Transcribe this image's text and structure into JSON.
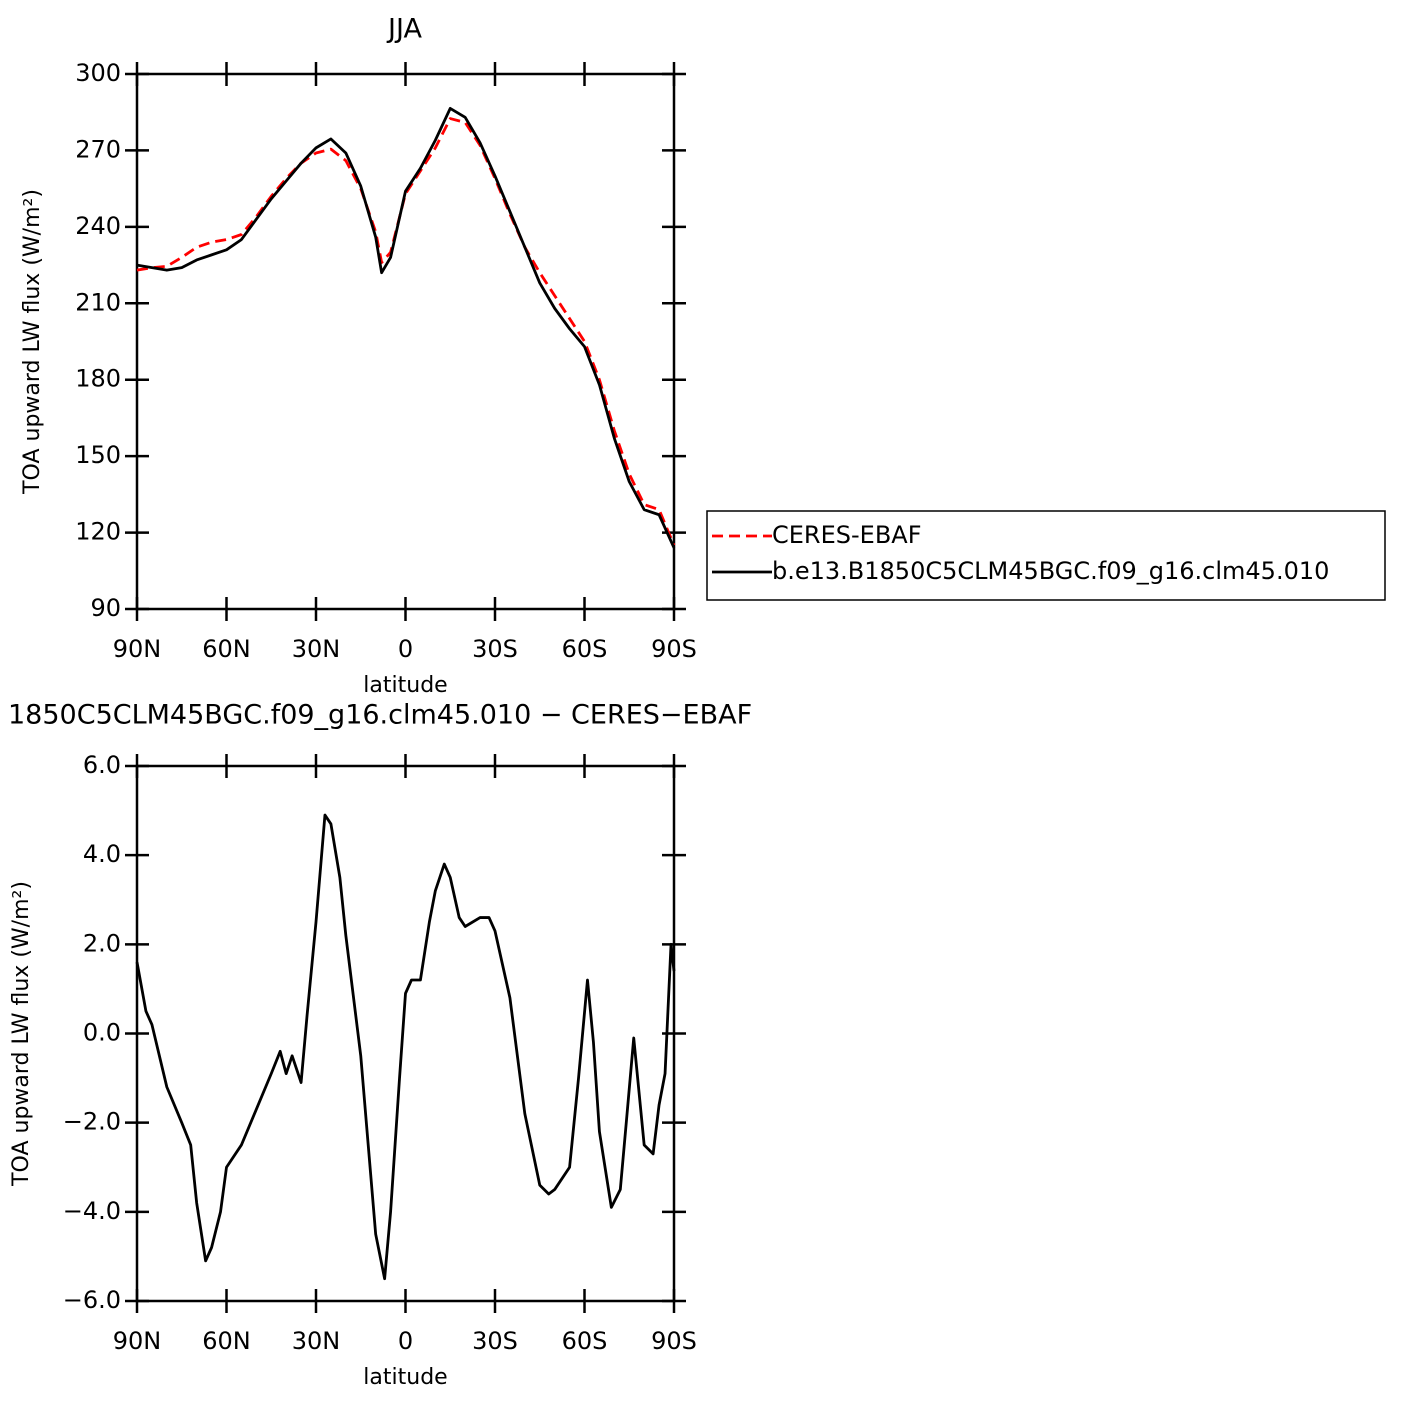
{
  "chart_data": [
    {
      "type": "line",
      "title": "JJA",
      "xlabel": "latitude",
      "ylabel": "TOA upward LW flux (W/m²)",
      "x": [
        90,
        85,
        80,
        75,
        70,
        65,
        60,
        55,
        50,
        45,
        40,
        35,
        30,
        25,
        20,
        15,
        10,
        8,
        5,
        0,
        -5,
        -10,
        -15,
        -20,
        -25,
        -30,
        -35,
        -40,
        -45,
        -50,
        -55,
        -60,
        -65,
        -70,
        -75,
        -80,
        -85,
        -90
      ],
      "xlim": [
        90,
        -90
      ],
      "xticks": [
        {
          "value": 90,
          "label": "90N"
        },
        {
          "value": 60,
          "label": "60N"
        },
        {
          "value": 30,
          "label": "30N"
        },
        0,
        {
          "value": -30,
          "label": "30S"
        },
        {
          "value": -60,
          "label": "60S"
        },
        {
          "value": -90,
          "label": "90S"
        }
      ],
      "ylim": [
        90,
        300
      ],
      "yticks": [
        90,
        120,
        150,
        180,
        210,
        240,
        270,
        300
      ],
      "legend": "outside-right",
      "series": [
        {
          "name": "CERES-EBAF",
          "color": "#ff0000",
          "dash": "dashed",
          "values": [
            223,
            224,
            224.5,
            228,
            232,
            234,
            235,
            237,
            244,
            252,
            259,
            265,
            269,
            270.5,
            266,
            255,
            238,
            226,
            230,
            253,
            262,
            271,
            282.5,
            281,
            272,
            259,
            245,
            232,
            222,
            213,
            204,
            195,
            180,
            160,
            143,
            131,
            129,
            115
          ]
        },
        {
          "name": "b.e13.B1850C5CLM45BGC.f09_g16.clm45.010",
          "color": "#000000",
          "dash": "solid",
          "values": [
            225,
            224,
            223,
            224,
            227,
            229,
            231,
            235,
            243,
            251,
            258,
            265,
            271,
            274.5,
            269,
            256,
            236,
            222,
            228,
            254,
            263,
            274,
            286.5,
            283,
            273,
            260,
            246,
            232,
            218,
            208,
            200,
            193,
            178,
            157,
            140,
            129,
            127,
            114
          ]
        }
      ]
    },
    {
      "type": "line",
      "title": "1850C5CLM45BGC.f09_g16.clm45.010 − CERES−EBAF",
      "xlabel": "latitude",
      "ylabel": "TOA upward LW flux (W/m²)",
      "x": [
        90,
        87,
        85,
        80,
        75,
        72,
        70,
        67,
        65,
        62,
        60,
        55,
        50,
        45,
        42,
        40,
        38,
        35,
        33,
        30,
        27,
        25,
        22,
        20,
        15,
        10,
        7,
        5,
        2,
        0,
        -2,
        -5,
        -8,
        -10,
        -13,
        -15,
        -18,
        -20,
        -25,
        -28,
        -30,
        -35,
        -40,
        -45,
        -48,
        -50,
        -55,
        -58,
        -61,
        -63,
        -65,
        -69,
        -72,
        -74,
        -76.5,
        -80,
        -83,
        -85,
        -87,
        -89,
        -90
      ],
      "xlim": [
        90,
        -90
      ],
      "xticks": [
        {
          "value": 90,
          "label": "90N"
        },
        {
          "value": 60,
          "label": "60N"
        },
        {
          "value": 30,
          "label": "30N"
        },
        0,
        {
          "value": -30,
          "label": "30S"
        },
        {
          "value": -60,
          "label": "60S"
        },
        {
          "value": -90,
          "label": "90S"
        }
      ],
      "ylim": [
        -6,
        6
      ],
      "yticks": [
        {
          "value": -6,
          "label": "−6.0"
        },
        {
          "value": -4,
          "label": "−4.0"
        },
        {
          "value": -2,
          "label": "−2.0"
        },
        {
          "value": 0,
          "label": "0.0"
        },
        {
          "value": 2,
          "label": "2.0"
        },
        {
          "value": 4,
          "label": "4.0"
        },
        {
          "value": 6,
          "label": "6.0"
        }
      ],
      "series": [
        {
          "color": "#000000",
          "dash": "solid",
          "values": [
            1.6,
            0.5,
            0.2,
            -1.2,
            -2.0,
            -2.5,
            -3.8,
            -5.1,
            -4.8,
            -4.0,
            -3.0,
            -2.5,
            -1.7,
            -0.9,
            -0.4,
            -0.9,
            -0.5,
            -1.1,
            0.4,
            2.5,
            4.9,
            4.7,
            3.5,
            2.2,
            -0.5,
            -4.5,
            -5.5,
            -4.0,
            -1.0,
            0.9,
            1.2,
            1.2,
            2.5,
            3.2,
            3.8,
            3.5,
            2.6,
            2.4,
            2.6,
            2.6,
            2.3,
            0.8,
            -1.8,
            -3.4,
            -3.6,
            -3.5,
            -3.0,
            -1.0,
            1.2,
            -0.2,
            -2.2,
            -3.9,
            -3.5,
            -2.0,
            -0.1,
            -2.5,
            -2.7,
            -1.6,
            -0.9,
            2.0,
            1.4
          ]
        }
      ]
    }
  ]
}
